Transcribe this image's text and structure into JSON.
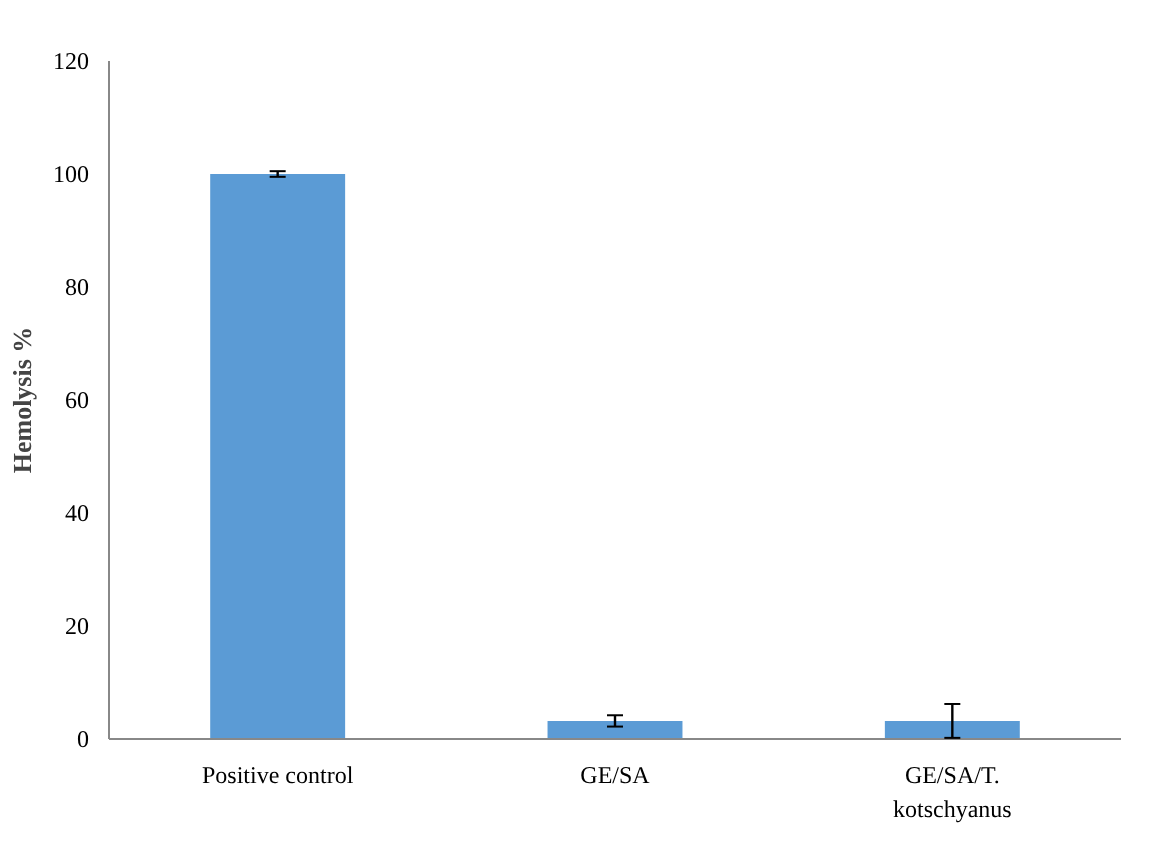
{
  "chart_data": {
    "type": "bar",
    "ylabel": "Hemolysis %",
    "categories": [
      "Positive control",
      "GE/SA",
      "GE/SA/T. kotschyanus"
    ],
    "values": [
      100,
      3.2,
      3.2
    ],
    "errors": [
      0.5,
      1,
      3
    ],
    "color": "#5b9bd5",
    "ylim": [
      0,
      120
    ],
    "yticks": [
      0,
      20,
      40,
      60,
      80,
      100,
      120
    ],
    "grid": false
  }
}
